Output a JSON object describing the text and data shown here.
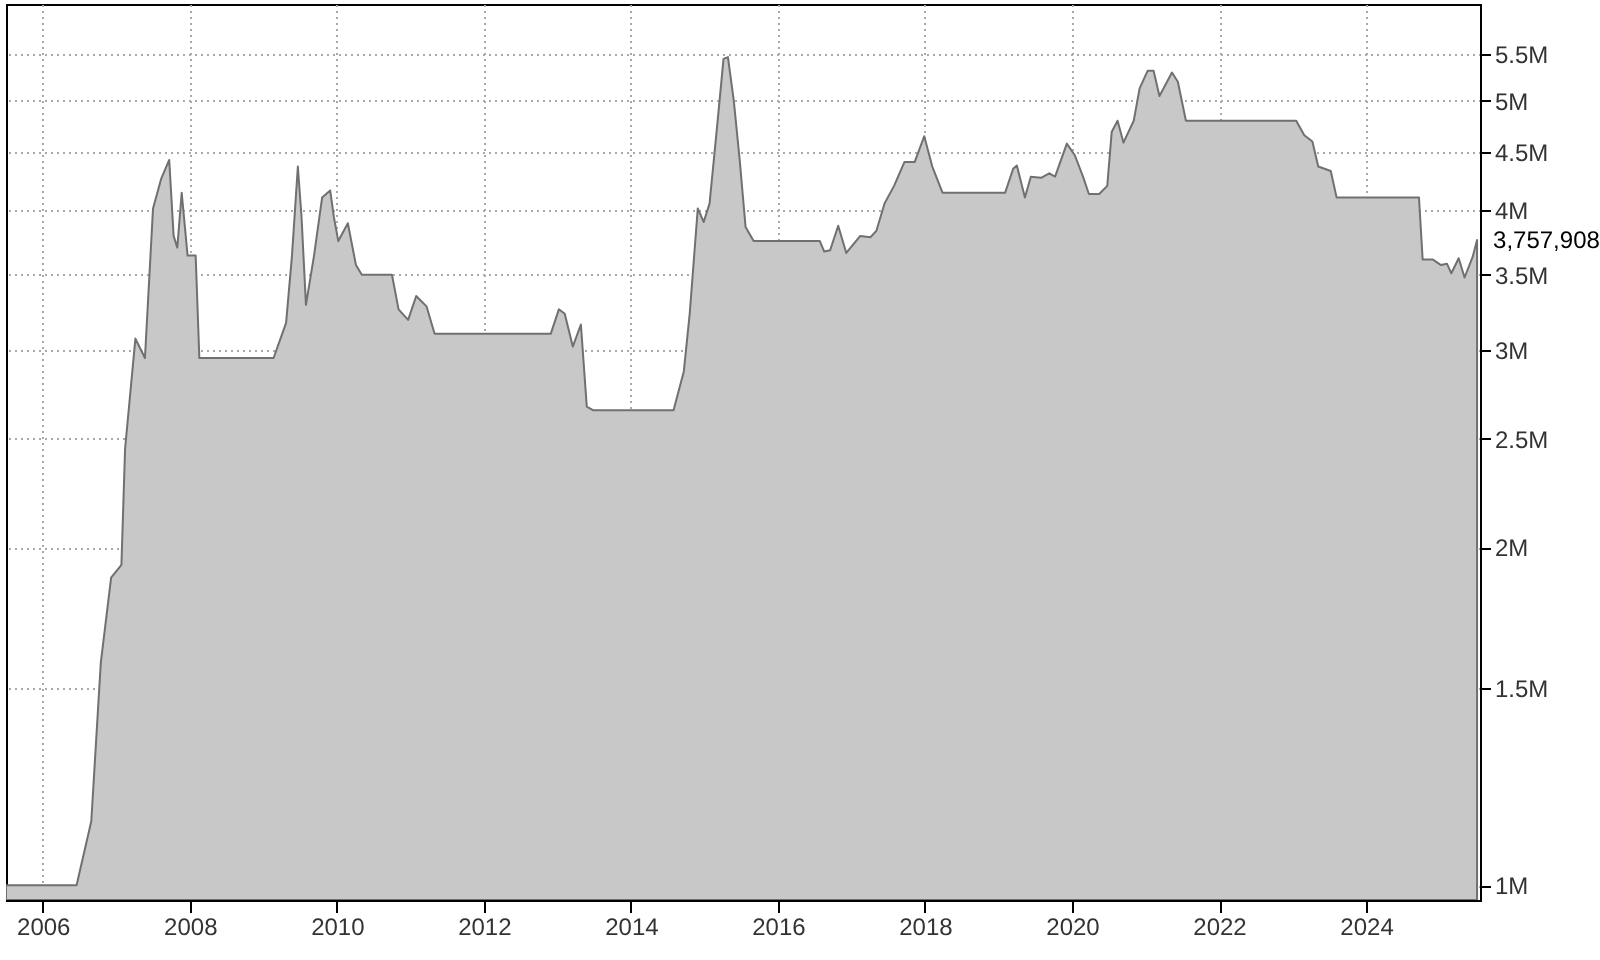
{
  "chart_data": {
    "type": "area",
    "log": true,
    "grid": true,
    "x": [
      2005.5,
      2006.46,
      2006.66,
      2006.79,
      2006.93,
      2007.07,
      2007.12,
      2007.26,
      2007.39,
      2007.5,
      2007.61,
      2007.72,
      2007.78,
      2007.83,
      2007.89,
      2007.97,
      2008.08,
      2008.13,
      2009.14,
      2009.31,
      2009.39,
      2009.47,
      2009.52,
      2009.58,
      2009.69,
      2009.8,
      2009.91,
      2009.96,
      2010.02,
      2010.15,
      2010.26,
      2010.34,
      2010.75,
      2010.84,
      2010.97,
      2011.08,
      2011.22,
      2011.33,
      2012.91,
      2013.02,
      2013.1,
      2013.21,
      2013.32,
      2013.4,
      2013.49,
      2014.58,
      2014.72,
      2014.8,
      2014.91,
      2014.99,
      2015.07,
      2015.18,
      2015.26,
      2015.32,
      2015.4,
      2015.48,
      2015.56,
      2015.67,
      2016.57,
      2016.63,
      2016.71,
      2016.82,
      2016.93,
      2017.12,
      2017.26,
      2017.34,
      2017.45,
      2017.58,
      2017.72,
      2017.86,
      2017.99,
      2018.1,
      2018.24,
      2019.09,
      2019.2,
      2019.25,
      2019.36,
      2019.44,
      2019.58,
      2019.69,
      2019.77,
      2019.93,
      2020.04,
      2020.15,
      2020.23,
      2020.37,
      2020.48,
      2020.54,
      2020.62,
      2020.7,
      2020.84,
      2020.92,
      2021.03,
      2021.11,
      2021.19,
      2021.36,
      2021.44,
      2021.55,
      2023.05,
      2023.16,
      2023.27,
      2023.35,
      2023.52,
      2023.6,
      2024.72,
      2024.77,
      2024.91,
      2025.02,
      2025.1,
      2025.16,
      2025.26,
      2025.34,
      2025.45,
      2025.51
    ],
    "series": [
      {
        "color": "#c8c8c8",
        "values": [
          1000000,
          1000000,
          1140000,
          1580000,
          1880000,
          1930000,
          2450000,
          3070000,
          2950000,
          4010000,
          4260000,
          4430000,
          3790000,
          3700000,
          4140000,
          3640000,
          3640000,
          2950000,
          2950000,
          3170000,
          3640000,
          4370000,
          3940000,
          3290000,
          3640000,
          4100000,
          4160000,
          3940000,
          3750000,
          3890000,
          3570000,
          3500000,
          3500000,
          3260000,
          3190000,
          3350000,
          3280000,
          3100000,
          3100000,
          3260000,
          3230000,
          3020000,
          3160000,
          2670000,
          2650000,
          2650000,
          2870000,
          3230000,
          4010000,
          3900000,
          4050000,
          4800000,
          5450000,
          5470000,
          5000000,
          4430000,
          3860000,
          3750000,
          3750000,
          3670000,
          3680000,
          3870000,
          3660000,
          3790000,
          3780000,
          3830000,
          4050000,
          4200000,
          4410000,
          4410000,
          4650000,
          4370000,
          4140000,
          4140000,
          4350000,
          4380000,
          4100000,
          4280000,
          4270000,
          4310000,
          4280000,
          4580000,
          4470000,
          4280000,
          4130000,
          4130000,
          4200000,
          4690000,
          4800000,
          4590000,
          4800000,
          5130000,
          5320000,
          5320000,
          5050000,
          5300000,
          5200000,
          4800000,
          4800000,
          4660000,
          4600000,
          4370000,
          4330000,
          4100000,
          4100000,
          3610000,
          3610000,
          3570000,
          3580000,
          3510000,
          3620000,
          3480000,
          3630000,
          3757908
        ]
      }
    ],
    "xlim": [
      2005.5,
      2025.55
    ],
    "ylim": [
      970000,
      6100000
    ],
    "xticks": [
      2006,
      2008,
      2010,
      2012,
      2014,
      2016,
      2018,
      2020,
      2022,
      2024
    ],
    "yticks": [
      {
        "value": 1000000,
        "label": "1M"
      },
      {
        "value": 1500000,
        "label": "1.5M"
      },
      {
        "value": 2000000,
        "label": "2M"
      },
      {
        "value": 2500000,
        "label": "2.5M"
      },
      {
        "value": 3000000,
        "label": "3M"
      },
      {
        "value": 3500000,
        "label": "3.5M"
      },
      {
        "value": 4000000,
        "label": "4M"
      },
      {
        "value": 4500000,
        "label": "4.5M"
      },
      {
        "value": 5000000,
        "label": "5M"
      },
      {
        "value": 5500000,
        "label": "5.5M"
      }
    ],
    "annotations": [
      {
        "text": "3,757,908",
        "x": 2025.51,
        "y": 3757908
      }
    ]
  }
}
